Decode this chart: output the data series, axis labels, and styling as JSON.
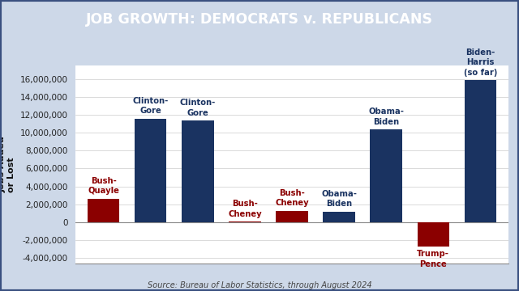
{
  "title": "JOB GROWTH: DEMOCRATS v. REPUBLICANS",
  "title_bg_color": "#1a3361",
  "title_text_color": "#ffffff",
  "ylabel": "Jobs Added\nor Lost",
  "source": "Source: Bureau of Labor Statistics, through August 2024",
  "categories": [
    "Bush-\nQuayle",
    "Clinton-\nGore",
    "Clinton-\nGore",
    "Bush-\nCheney",
    "Bush-\nCheney",
    "Obama-\nBiden",
    "Obama-\nBiden",
    "Trump-\nPence",
    "Biden-\nHarris\n(so far)"
  ],
  "values": [
    2634000,
    11568000,
    11336000,
    80000,
    1287000,
    1197000,
    10373000,
    -2720000,
    15862000
  ],
  "bar_colors": [
    "#8b0000",
    "#1a3361",
    "#1a3361",
    "#8b0000",
    "#8b0000",
    "#1a3361",
    "#1a3361",
    "#8b0000",
    "#1a3361"
  ],
  "label_colors": [
    "#8b0000",
    "#1a3361",
    "#1a3361",
    "#8b0000",
    "#8b0000",
    "#1a3361",
    "#1a3361",
    "#8b0000",
    "#1a3361"
  ],
  "ylim": [
    -4600000,
    17500000
  ],
  "yticks": [
    -4000000,
    -2000000,
    0,
    2000000,
    4000000,
    6000000,
    8000000,
    10000000,
    12000000,
    14000000,
    16000000
  ],
  "bg_color": "#cdd8e8",
  "plot_bg_color": "#ffffff",
  "border_color": "#3a5080",
  "figsize": [
    6.4,
    3.6
  ],
  "dpi": 100
}
